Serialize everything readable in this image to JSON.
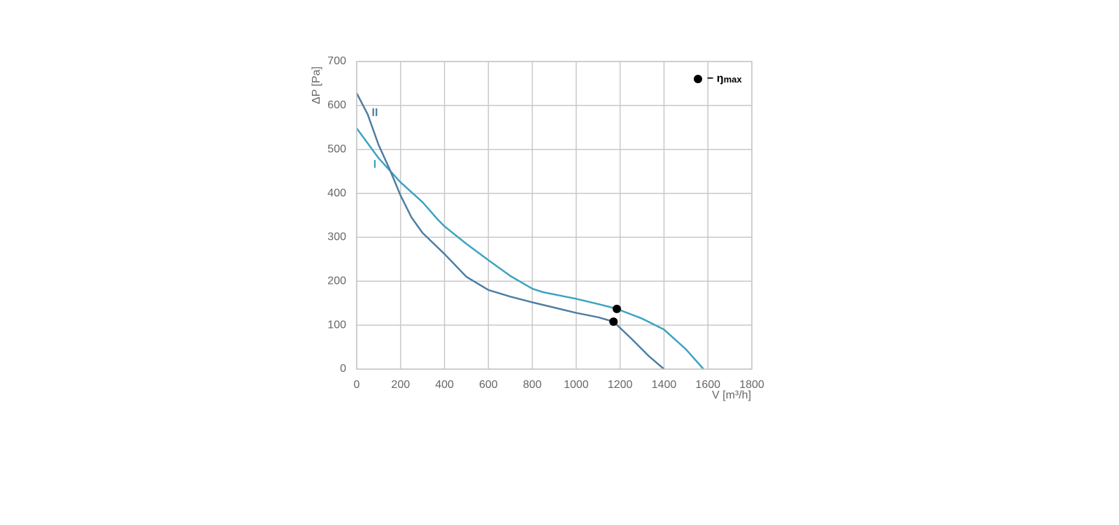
{
  "chart_data": {
    "type": "line",
    "xlabel": "V [m³/h]",
    "ylabel": "ΔP [Pa]",
    "xlim": [
      0,
      1800
    ],
    "xticks": [
      0,
      200,
      400,
      600,
      800,
      1000,
      1200,
      1400,
      1600,
      1800
    ],
    "ylim": [
      0,
      700
    ],
    "yticks": [
      0,
      100,
      200,
      300,
      400,
      500,
      600,
      700
    ],
    "grid": true,
    "series": [
      {
        "name": "I",
        "color": "#3ba3c2",
        "x": [
          0,
          100,
          200,
          300,
          370,
          400,
          500,
          600,
          700,
          800,
          850,
          1000,
          1100,
          1180,
          1300,
          1400,
          1500,
          1580
        ],
        "values": [
          548,
          480,
          425,
          380,
          340,
          325,
          285,
          248,
          212,
          183,
          175,
          160,
          148,
          138,
          115,
          90,
          45,
          0
        ]
      },
      {
        "name": "II",
        "color": "#4d7ea3",
        "x": [
          0,
          50,
          100,
          150,
          200,
          250,
          300,
          400,
          500,
          600,
          700,
          800,
          900,
          1000,
          1100,
          1170,
          1250,
          1330,
          1400
        ],
        "values": [
          628,
          580,
          510,
          455,
          395,
          345,
          310,
          262,
          210,
          180,
          165,
          152,
          140,
          128,
          118,
          108,
          70,
          30,
          0
        ]
      }
    ],
    "max_efficiency": {
      "label": "− ŋ",
      "sub": "max",
      "color": "#000000",
      "points": [
        {
          "x": 1185,
          "y": 137
        },
        {
          "x": 1170,
          "y": 108
        }
      ]
    }
  }
}
